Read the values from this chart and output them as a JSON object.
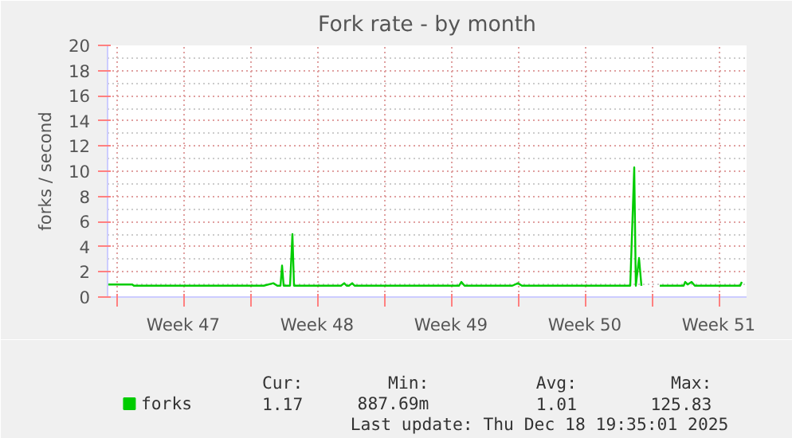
{
  "chart_data": {
    "type": "line",
    "title": "Fork rate - by month",
    "ylabel": "forks / second",
    "x": [
      "2025-11-16T13:00",
      "2025-11-17T20:00",
      "2025-11-17T22:00",
      "2025-11-21T05:00",
      "2025-11-24T17:00",
      "2025-11-25T05:00",
      "2025-11-25T10:00",
      "2025-11-25T14:00",
      "2025-11-25T16:00",
      "2025-11-25T18:00",
      "2025-11-26T02:00",
      "2025-11-26T05:00",
      "2025-11-26T07:00",
      "2025-11-28T18:00",
      "2025-11-28T22:00",
      "2025-11-29T01:00",
      "2025-11-29T04:00",
      "2025-11-29T08:00",
      "2025-11-29T11:00",
      "2025-12-04T22:00",
      "2025-12-05T01:00",
      "2025-12-05T05:00",
      "2025-12-07T17:00",
      "2025-12-08T00:00",
      "2025-12-08T05:00",
      "2025-12-13T21:00",
      "2025-12-14T02:00",
      "2025-12-14T04:00",
      "2025-12-14T08:00",
      "2025-12-14T11:00",
      "2025-12-15T00:00",
      "2025-12-15T10:00",
      "2025-12-16T16:00",
      "2025-12-16T18:00",
      "2025-12-16T21:00",
      "2025-12-17T02:00",
      "2025-12-17T06:00",
      "2025-12-19T15:00",
      "2025-12-19T17:00"
    ],
    "series": [
      {
        "name": "forks",
        "color": "#00cc00",
        "values": [
          1.0,
          1.0,
          0.9,
          0.9,
          0.9,
          1.1,
          0.9,
          0.9,
          2.5,
          0.9,
          0.9,
          5.0,
          0.9,
          0.9,
          1.1,
          0.9,
          0.9,
          1.1,
          0.9,
          0.9,
          1.2,
          0.9,
          0.9,
          1.1,
          0.9,
          0.9,
          10.3,
          0.9,
          3.1,
          0.9,
          null,
          0.9,
          0.9,
          1.2,
          1.0,
          1.2,
          0.9,
          0.9,
          1.2
        ]
      }
    ],
    "xlim": [
      "2025-11-16T13:00",
      "2025-12-19T23:00"
    ],
    "ylim": [
      0,
      20
    ],
    "xticks": [
      {
        "value": "2025-11-17",
        "label": null
      },
      {
        "value": "2025-11-20T12:00",
        "label": "Week 47"
      },
      {
        "value": "2025-11-24",
        "label": null
      },
      {
        "value": "2025-11-27T12:00",
        "label": "Week 48"
      },
      {
        "value": "2025-12-01",
        "label": null
      },
      {
        "value": "2025-12-04T12:00",
        "label": "Week 49"
      },
      {
        "value": "2025-12-08",
        "label": null
      },
      {
        "value": "2025-12-11T12:00",
        "label": "Week 50"
      },
      {
        "value": "2025-12-15",
        "label": null
      },
      {
        "value": "2025-12-18T12:00",
        "label": "Week 51"
      }
    ],
    "yticks": [
      0,
      2,
      4,
      6,
      8,
      10,
      12,
      14,
      16,
      18,
      20
    ],
    "grid": true,
    "legend": "bottom left",
    "marker": "none",
    "line_style": "solid",
    "annotations": [
      "Cur:",
      "Min:",
      "Avg:",
      "Max:",
      "1.17",
      "887.69m",
      "1.01",
      "125.83",
      "Last update: Thu Dec 18 19:35:01 2025"
    ]
  }
}
